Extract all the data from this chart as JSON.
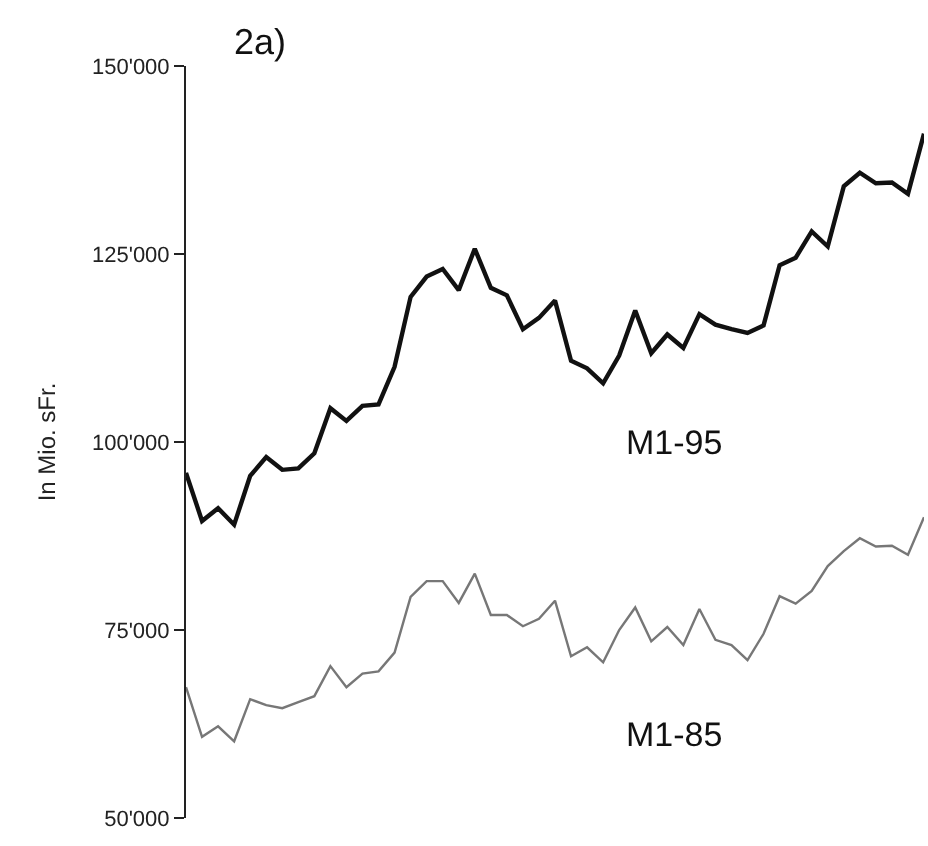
{
  "chart_data": {
    "type": "line",
    "title": "2a)",
    "ylabel": "In Mio. sFr.",
    "categories": [
      null,
      null,
      null,
      null,
      null,
      null,
      null,
      null,
      null,
      null,
      null,
      null,
      null,
      null,
      null,
      null,
      null,
      null,
      null,
      null,
      null,
      null,
      null,
      null,
      null,
      null,
      null,
      null,
      null,
      null,
      null,
      null,
      null,
      null,
      null,
      null,
      null,
      null,
      null,
      null,
      null,
      null,
      null,
      null,
      null,
      null,
      null
    ],
    "series": [
      {
        "name": "M1-95",
        "color": "#111111",
        "values": [
          95900,
          89500,
          91200,
          89000,
          95500,
          98000,
          96300,
          96500,
          98500,
          104500,
          102800,
          104800,
          105000,
          110000,
          119300,
          122000,
          123000,
          120200,
          125700,
          120500,
          119500,
          115000,
          116500,
          118800,
          110800,
          109800,
          107800,
          111500,
          117500,
          111800,
          114300,
          112500,
          117000,
          115600,
          115000,
          114500,
          115500,
          123500,
          124500,
          128000,
          126000,
          134000,
          135800,
          134400,
          134500,
          133000,
          141000
        ]
      },
      {
        "name": "M1-85",
        "color": "#777777",
        "values": [
          67400,
          60800,
          62200,
          60200,
          65800,
          65000,
          64600,
          65400,
          66200,
          70200,
          67400,
          69200,
          69500,
          72000,
          79400,
          81500,
          81500,
          78600,
          82500,
          77000,
          77000,
          75500,
          76500,
          78900,
          71500,
          72700,
          70700,
          75000,
          78000,
          73500,
          75400,
          73000,
          77800,
          73700,
          73000,
          71000,
          74500,
          79500,
          78500,
          80200,
          83500,
          85500,
          87200,
          86100,
          86200,
          85000,
          90000
        ]
      }
    ],
    "ylim": [
      50000,
      150000
    ],
    "yticks": [
      {
        "value": 50000,
        "label": "50'000"
      },
      {
        "value": 75000,
        "label": "75'000"
      },
      {
        "value": 100000,
        "label": "100'000"
      },
      {
        "value": 125000,
        "label": "125'000"
      },
      {
        "value": 150000,
        "label": "150'000"
      }
    ],
    "tick_labels": "y",
    "legend": false,
    "marker": "none",
    "line_style": "solid"
  }
}
